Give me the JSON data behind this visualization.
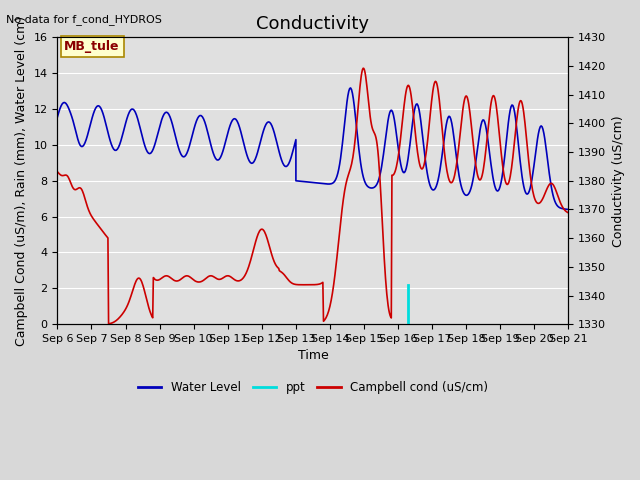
{
  "title": "Conductivity",
  "top_left_text": "No data for f_cond_HYDROS",
  "ylabel_left": "Campbell Cond (uS/m), Rain (mm), Water Level (cm)",
  "ylabel_right": "Conductivity (uS/cm)",
  "xlabel": "Time",
  "legend_box_label": "MB_tule",
  "ylim_left": [
    0,
    16
  ],
  "ylim_right": [
    1330,
    1430
  ],
  "yticks_left": [
    0,
    2,
    4,
    6,
    8,
    10,
    12,
    14,
    16
  ],
  "yticks_right": [
    1330,
    1340,
    1350,
    1360,
    1370,
    1380,
    1390,
    1400,
    1410,
    1420,
    1430
  ],
  "xtick_labels": [
    "Sep 6",
    "Sep 7",
    "Sep 8",
    "Sep 9",
    "Sep 10",
    "Sep 11",
    "Sep 12",
    "Sep 13",
    "Sep 14",
    "Sep 15",
    "Sep 16",
    "Sep 17",
    "Sep 18",
    "Sep 19",
    "Sep 20",
    "Sep 21"
  ],
  "background_color": "#d8d8d8",
  "plot_bg_color": "#e0e0e0",
  "water_level_color": "#0000bb",
  "ppt_color": "#00dddd",
  "campbell_color": "#cc0000",
  "font_size_title": 13,
  "font_size_labels": 9,
  "font_size_ticks": 8
}
